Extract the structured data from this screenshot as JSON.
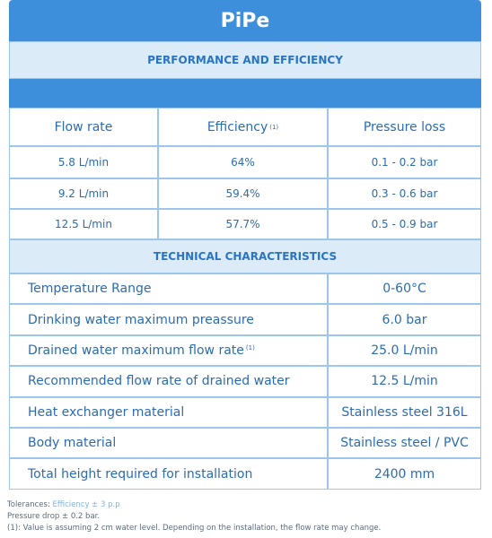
{
  "header": {
    "title": "PiPe"
  },
  "performance": {
    "title": "PERFORMANCE AND EFFICIENCY",
    "columns": [
      {
        "label": "Flow rate"
      },
      {
        "label": "Efficiency",
        "note": "(1)"
      },
      {
        "label": "Pressure loss"
      }
    ],
    "rows": [
      [
        "5.8 L/min",
        "64%",
        "0.1 - 0.2 bar"
      ],
      [
        "9.2 L/min",
        "59.4%",
        "0.3 - 0.6 bar"
      ],
      [
        "12.5 L/min",
        "57.7%",
        "0.5 - 0.9 bar"
      ]
    ]
  },
  "technical": {
    "title": "TECHNICAL CHARACTERISTICS",
    "rows": [
      {
        "label": "Temperature Range",
        "value": "0-60°C"
      },
      {
        "label": "Drinking water maximum preassure",
        "value": "6.0 bar"
      },
      {
        "label": "Drained water maximum flow rate",
        "note": "(1)",
        "value": "25.0 L/min"
      },
      {
        "label": "Recommended flow rate of drained water",
        "value": "12.5 L/min"
      },
      {
        "label": "Heat exchanger material",
        "value": "Stainless steel 316L"
      },
      {
        "label": "Body material",
        "value": "Stainless steel / PVC"
      },
      {
        "label": "Total height required for installation",
        "value": "2400 mm"
      }
    ]
  },
  "footnotes": {
    "tolerances_label": "Tolerances:",
    "tolerances_value": "Efficiency ± 3 p.p",
    "lines": [
      "Pressure drop ± 0.2 bar.",
      "(1): Value is assuming 2 cm water level. Depending on the installation, the flow rate may change."
    ]
  }
}
